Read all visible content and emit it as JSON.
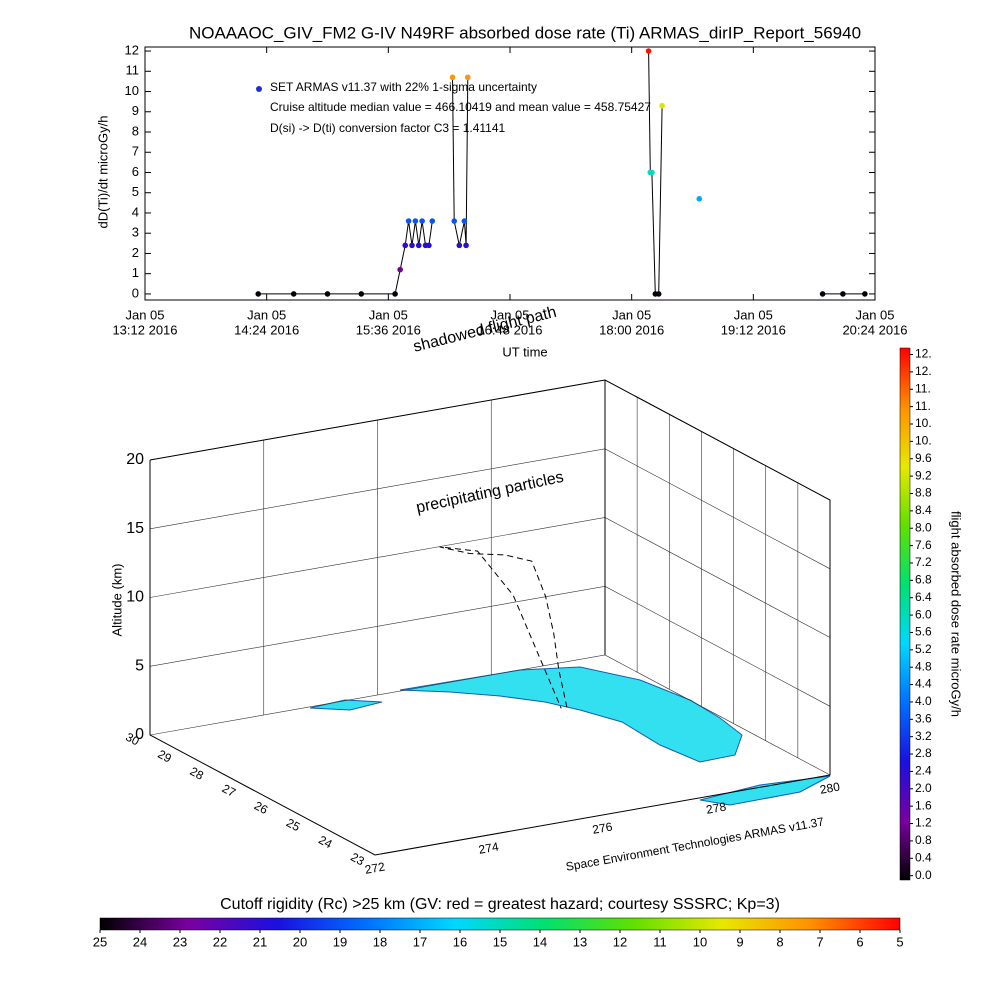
{
  "chart_data": [
    {
      "type": "line",
      "title": "NOAAAOC_GIV_FM2 G-IV    N49RF  absorbed dose rate (Ti) ARMAS_dirIP_Report_56940",
      "ylabel": "dD(Ti)/dt microGy/h",
      "xlabel": "UT time",
      "annotations": [
        "Cruise altitude median value = 466.10419 and mean value = 458.75427",
        "D(si) -> D(ti) conversion factor C3 = 1.41141"
      ],
      "series": [
        {
          "name": "SET ARMAS v11.37 with 22% 1-sigma uncertainty",
          "color": "#000000",
          "marker_color": "#2030d0",
          "x": [
            "2016-01-05 14:19",
            "2016-01-05 14:40",
            "2016-01-05 15:00",
            "2016-01-05 15:20",
            "2016-01-05 15:40",
            "2016-01-05 15:43",
            "2016-01-05 15:46",
            "2016-01-05 15:48",
            "2016-01-05 15:50",
            "2016-01-05 15:52",
            "2016-01-05 15:54",
            "2016-01-05 15:56",
            "2016-01-05 15:58",
            "2016-01-05 16:00",
            "2016-01-05 16:02",
            "2016-01-05 16:08",
            "2016-01-05 16:14",
            "2016-01-05 16:15",
            "2016-01-05 16:18",
            "2016-01-05 16:21",
            "2016-01-05 16:22",
            "2016-01-05 16:23",
            "2016-01-05 17:30",
            "2016-01-05 18:10",
            "2016-01-05 18:11",
            "2016-01-05 18:12",
            "2016-01-05 18:14",
            "2016-01-05 18:16",
            "2016-01-05 18:18",
            "2016-01-05 18:30",
            "2016-01-05 18:40",
            "2016-01-05 19:20",
            "2016-01-05 19:53",
            "2016-01-05 20:05",
            "2016-01-05 20:18"
          ],
          "values": [
            0,
            0,
            0,
            0,
            0,
            1.2,
            2.4,
            3.6,
            2.4,
            3.6,
            2.4,
            3.6,
            2.4,
            2.4,
            3.6,
            null,
            10.7,
            3.6,
            2.4,
            3.6,
            2.4,
            10.7,
            null,
            12,
            6.0,
            6.0,
            0,
            0,
            9.3,
            null,
            4.7,
            null,
            0,
            0,
            0
          ]
        }
      ],
      "xlim": [
        "2016-01-05 13:12",
        "2016-01-05 20:24"
      ],
      "xticks": [
        {
          "value": "2016-01-05 13:12",
          "label": [
            "Jan 05",
            "13:12 2016"
          ]
        },
        {
          "value": "2016-01-05 14:24",
          "label": [
            "Jan 05",
            "14:24 2016"
          ]
        },
        {
          "value": "2016-01-05 15:36",
          "label": [
            "Jan 05",
            "15:36 2016"
          ]
        },
        {
          "value": "2016-01-05 16:48",
          "label": [
            "Jan 05",
            "16:48 2016"
          ]
        },
        {
          "value": "2016-01-05 18:00",
          "label": [
            "Jan 05",
            "18:00 2016"
          ]
        },
        {
          "value": "2016-01-05 19:12",
          "label": [
            "Jan 05",
            "19:12 2016"
          ]
        },
        {
          "value": "2016-01-05 20:24",
          "label": [
            "Jan 05",
            "20:24 2016"
          ]
        }
      ],
      "ylim": [
        -0.3,
        12.2
      ],
      "yticks": [
        0,
        1,
        2,
        3,
        4,
        5,
        6,
        7,
        8,
        9,
        10,
        11,
        12
      ]
    },
    {
      "type": "scatter3d",
      "zlabel": "Altitude (km)",
      "annotations": [
        "shadowed flight path",
        "precipitating particles",
        "Space Environment Technologies ARMAS v11.37"
      ],
      "latlim": [
        30,
        23
      ],
      "latticks": [
        30,
        29,
        28,
        27,
        26,
        25,
        24,
        23
      ],
      "lonlim": [
        272,
        280
      ],
      "lonticks": [
        272,
        274,
        276,
        278,
        280
      ],
      "zlim": [
        0,
        20
      ],
      "zticks": [
        0,
        5,
        10,
        15,
        20
      ],
      "series": [
        {
          "color": "#000000",
          "lat": [
            28.0,
            27.9,
            27.7,
            27.6,
            27.5,
            27.8,
            28.2,
            28.6,
            28.3,
            27.9,
            28.0
          ],
          "lon": [
            278.2,
            278.0,
            277.8,
            277.6,
            277.3,
            277.0,
            276.6,
            276.3,
            276.8,
            277.2,
            278.1
          ],
          "alt": [
            0,
            3,
            6,
            9,
            11.9,
            12.2,
            12.1,
            12.3,
            12.0,
            9,
            0
          ]
        }
      ]
    },
    {
      "type": "colorbar",
      "orientation": "vertical",
      "label": "flight absorbed dose rate microGy/h",
      "lim": [
        -0.1,
        12.15
      ],
      "ticks": [
        {
          "value": 0,
          "label": "0.0"
        },
        0.4,
        0.8,
        1.2,
        1.6,
        {
          "value": 2,
          "label": "2.0"
        },
        2.4,
        2.8,
        3.2,
        3.6,
        {
          "value": 4,
          "label": "4.0"
        },
        4.4,
        4.8,
        5.2,
        5.6,
        {
          "value": 6,
          "label": "6.0"
        },
        6.4,
        6.8,
        7.2,
        7.6,
        {
          "value": 8,
          "label": "8.0"
        },
        8.4,
        8.8,
        9.2,
        9.6,
        {
          "value": 10,
          "label": "10."
        },
        {
          "value": 10.4,
          "label": "10."
        },
        {
          "value": 10.8,
          "label": "11."
        },
        {
          "value": 11.2,
          "label": "11."
        },
        {
          "value": 11.6,
          "label": "12."
        },
        {
          "value": 12,
          "label": "12."
        }
      ],
      "colormap": [
        "#000000",
        "#7a00a0",
        "#1a10e0",
        "#0070ff",
        "#00d8ff",
        "#00e070",
        "#60e000",
        "#e8e800",
        "#ff9000",
        "#ff0000"
      ]
    },
    {
      "type": "colorbar",
      "orientation": "horizontal",
      "label": "Cutoff rigidity (Rc) >25 km (GV: red = greatest hazard; courtesy SSSRC; Kp=3)",
      "lim": [
        25,
        5
      ],
      "ticks": [
        25,
        24,
        23,
        22,
        21,
        20,
        19,
        18,
        17,
        16,
        15,
        14,
        13,
        12,
        11,
        10,
        9,
        8,
        7,
        6,
        5
      ],
      "colormap": [
        "#000000",
        "#7a00a0",
        "#1a10e0",
        "#0070ff",
        "#00d8ff",
        "#00e070",
        "#60e000",
        "#e8e800",
        "#ff9000",
        "#ff0000"
      ]
    }
  ]
}
